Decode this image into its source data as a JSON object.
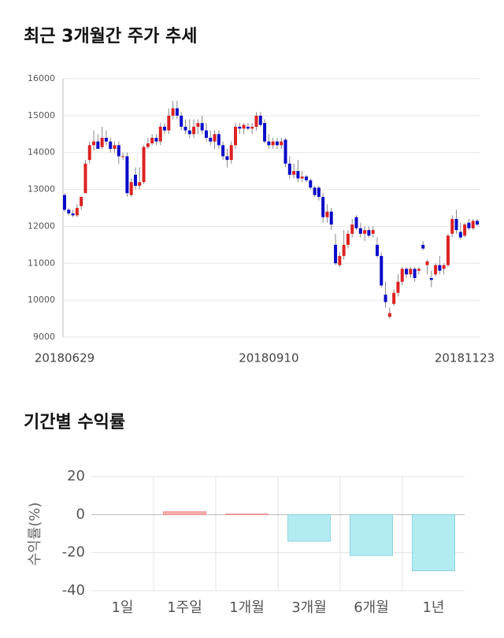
{
  "chart_data": [
    {
      "type": "candlestick",
      "title": "최근 3개월간 주가 추세",
      "categories": [
        "20180629",
        null,
        null,
        null,
        null,
        null,
        null,
        null,
        null,
        null,
        null,
        null,
        null,
        null,
        null,
        null,
        null,
        null,
        null,
        null,
        null,
        null,
        null,
        null,
        null,
        null,
        null,
        null,
        null,
        null,
        null,
        null,
        null,
        null,
        null,
        null,
        null,
        null,
        null,
        null,
        null,
        null,
        null,
        null,
        null,
        null,
        null,
        null,
        null,
        "20180910",
        null,
        null,
        null,
        null,
        null,
        null,
        null,
        null,
        null,
        null,
        null,
        null,
        null,
        null,
        null,
        null,
        null,
        null,
        null,
        null,
        null,
        null,
        null,
        null,
        null,
        null,
        null,
        null,
        null,
        null,
        null,
        null,
        null,
        null,
        null,
        null,
        null,
        null,
        null,
        null,
        null,
        null,
        null,
        null,
        null,
        null,
        null,
        null,
        null,
        "20181123"
      ],
      "open": [
        12850,
        12450,
        12350,
        12300,
        12550,
        12900,
        13800,
        14200,
        14300,
        14150,
        14400,
        14300,
        14100,
        14200,
        13900,
        13900,
        12850,
        13400,
        13100,
        13200,
        14150,
        14250,
        14400,
        14300,
        14700,
        14600,
        15000,
        15200,
        15000,
        14700,
        14600,
        14500,
        14700,
        14800,
        14600,
        14400,
        14300,
        14500,
        14200,
        13900,
        13800,
        14200,
        14700,
        14650,
        14700,
        14650,
        14700,
        15000,
        14800,
        14300,
        14200,
        14300,
        14200,
        14350,
        13700,
        13400,
        13500,
        13300,
        13350,
        13250,
        13050,
        13050,
        12800,
        12250,
        12400,
        11500,
        10950,
        11200,
        11500,
        11800,
        12250,
        11950,
        11800,
        11900,
        11800,
        11500,
        11200,
        10150,
        9550,
        9900,
        10200,
        10500,
        10850,
        10700,
        10850,
        10800,
        11500,
        10950,
        10600,
        10700,
        10950,
        10850,
        10950,
        11800,
        12200,
        11850,
        11750,
        12100,
        11950,
        12150
      ],
      "high": [
        12900,
        12500,
        12450,
        12600,
        12800,
        13800,
        14300,
        14600,
        14500,
        14700,
        14600,
        14400,
        14300,
        14300,
        14000,
        14000,
        13300,
        13600,
        13600,
        14200,
        14400,
        14500,
        14500,
        14800,
        14800,
        15200,
        15400,
        15400,
        15100,
        14900,
        14900,
        14900,
        14900,
        15000,
        14800,
        14600,
        14600,
        14600,
        14300,
        14100,
        14300,
        14800,
        14800,
        14800,
        14800,
        14800,
        15100,
        15100,
        14900,
        14500,
        14400,
        14400,
        14400,
        14400,
        13900,
        13700,
        13800,
        13500,
        13400,
        13300,
        13100,
        13100,
        12900,
        12600,
        12500,
        11800,
        11300,
        11900,
        11900,
        12200,
        12300,
        12100,
        12000,
        12000,
        12000,
        11700,
        11300,
        10500,
        9800,
        10300,
        10700,
        10900,
        10900,
        10900,
        10900,
        10900,
        11600,
        11100,
        10800,
        11000,
        11200,
        11000,
        11800,
        12300,
        12450,
        12100,
        12100,
        12200,
        12200,
        12200
      ],
      "low": [
        12400,
        12300,
        12250,
        12250,
        12450,
        12900,
        13700,
        14050,
        14100,
        14100,
        14200,
        14000,
        14000,
        13700,
        13800,
        12800,
        12800,
        13000,
        13000,
        13150,
        14100,
        14200,
        14200,
        14200,
        14500,
        14500,
        14900,
        14900,
        14600,
        14500,
        14400,
        14400,
        14500,
        14500,
        14300,
        14200,
        14100,
        14100,
        13800,
        13600,
        13700,
        14100,
        14500,
        14500,
        14600,
        14500,
        14600,
        14700,
        14250,
        14100,
        14100,
        14100,
        14100,
        13600,
        13300,
        13300,
        13200,
        13200,
        13200,
        13000,
        12800,
        12700,
        12100,
        12100,
        11900,
        10950,
        10900,
        11100,
        11400,
        11700,
        11900,
        11700,
        11600,
        11700,
        11700,
        11150,
        10350,
        9800,
        9500,
        9850,
        10100,
        10400,
        10600,
        10600,
        10500,
        10700,
        11350,
        10700,
        10350,
        10650,
        10700,
        10700,
        10900,
        11700,
        11800,
        11650,
        11700,
        11900,
        11900,
        12000
      ],
      "close": [
        12450,
        12350,
        12300,
        12500,
        12800,
        13700,
        14200,
        14300,
        14100,
        14400,
        14300,
        14100,
        14200,
        13900,
        13900,
        12900,
        13200,
        13100,
        13200,
        14150,
        14250,
        14400,
        14300,
        14700,
        14600,
        15000,
        15200,
        15000,
        14700,
        14600,
        14500,
        14700,
        14800,
        14600,
        14400,
        14300,
        14500,
        14200,
        13900,
        13800,
        14200,
        14700,
        14650,
        14750,
        14650,
        14700,
        15000,
        14750,
        14300,
        14200,
        14300,
        14200,
        14300,
        13700,
        13400,
        13500,
        13300,
        13350,
        13250,
        13050,
        12850,
        12800,
        12250,
        12400,
        12050,
        11000,
        11200,
        11500,
        11800,
        12050,
        11950,
        11800,
        11900,
        11750,
        11900,
        11200,
        10400,
        9950,
        9650,
        10200,
        10500,
        10850,
        10700,
        10850,
        10600,
        10850,
        11400,
        11050,
        10550,
        10950,
        10800,
        10950,
        11750,
        12200,
        11900,
        11700,
        12050,
        11950,
        12150,
        12050
      ],
      "up_color": "#dd2222",
      "down_color": "#0a0ac8",
      "ylim": [
        9000,
        16000
      ],
      "yticks": [
        9000,
        10000,
        11000,
        12000,
        13000,
        14000,
        15000,
        16000
      ],
      "grid": true
    },
    {
      "type": "bar",
      "title": "기간별 수익률",
      "y_label": "수익률(%)",
      "categories": [
        "1일",
        "1주일",
        "1개월",
        "3개월",
        "6개월",
        "1년"
      ],
      "values": [
        0,
        1.5,
        0.3,
        -14,
        -21.5,
        -29.5
      ],
      "positive_color": "#f6b0ae",
      "negative_color": "#b3ebf3",
      "ylim": [
        -40,
        20
      ],
      "yticks": [
        -40,
        -20,
        0,
        20
      ],
      "grid": true
    }
  ]
}
